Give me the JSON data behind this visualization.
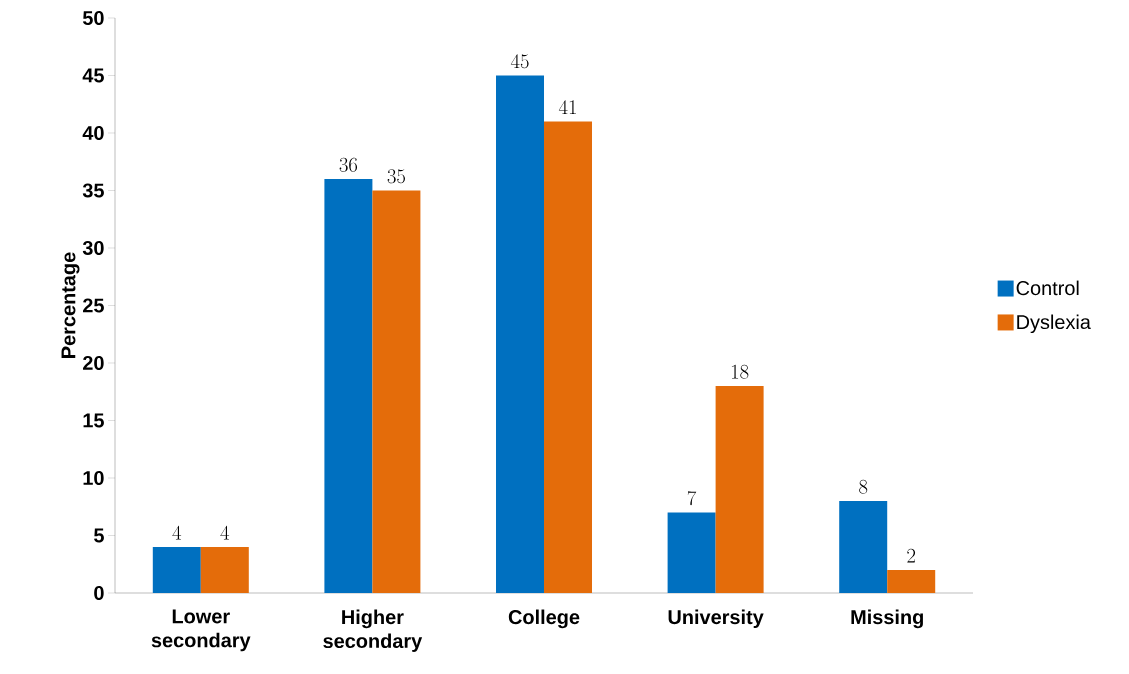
{
  "chart_data": {
    "type": "bar",
    "ylabel": "Percentage",
    "categories": [
      "Lower secondary",
      "Higher secondary",
      "College",
      "University",
      "Missing"
    ],
    "series": [
      {
        "name": "Control",
        "color": "#0070c0",
        "values": [
          4,
          36,
          45,
          7,
          8
        ]
      },
      {
        "name": "Dyslexia",
        "color": "#e46c0a",
        "values": [
          4,
          35,
          41,
          18,
          2
        ]
      }
    ],
    "ylim": [
      0,
      50
    ],
    "yticks": [
      0,
      5,
      10,
      15,
      20,
      25,
      30,
      35,
      40,
      45,
      50
    ],
    "data_labels": true,
    "legend": "right"
  }
}
